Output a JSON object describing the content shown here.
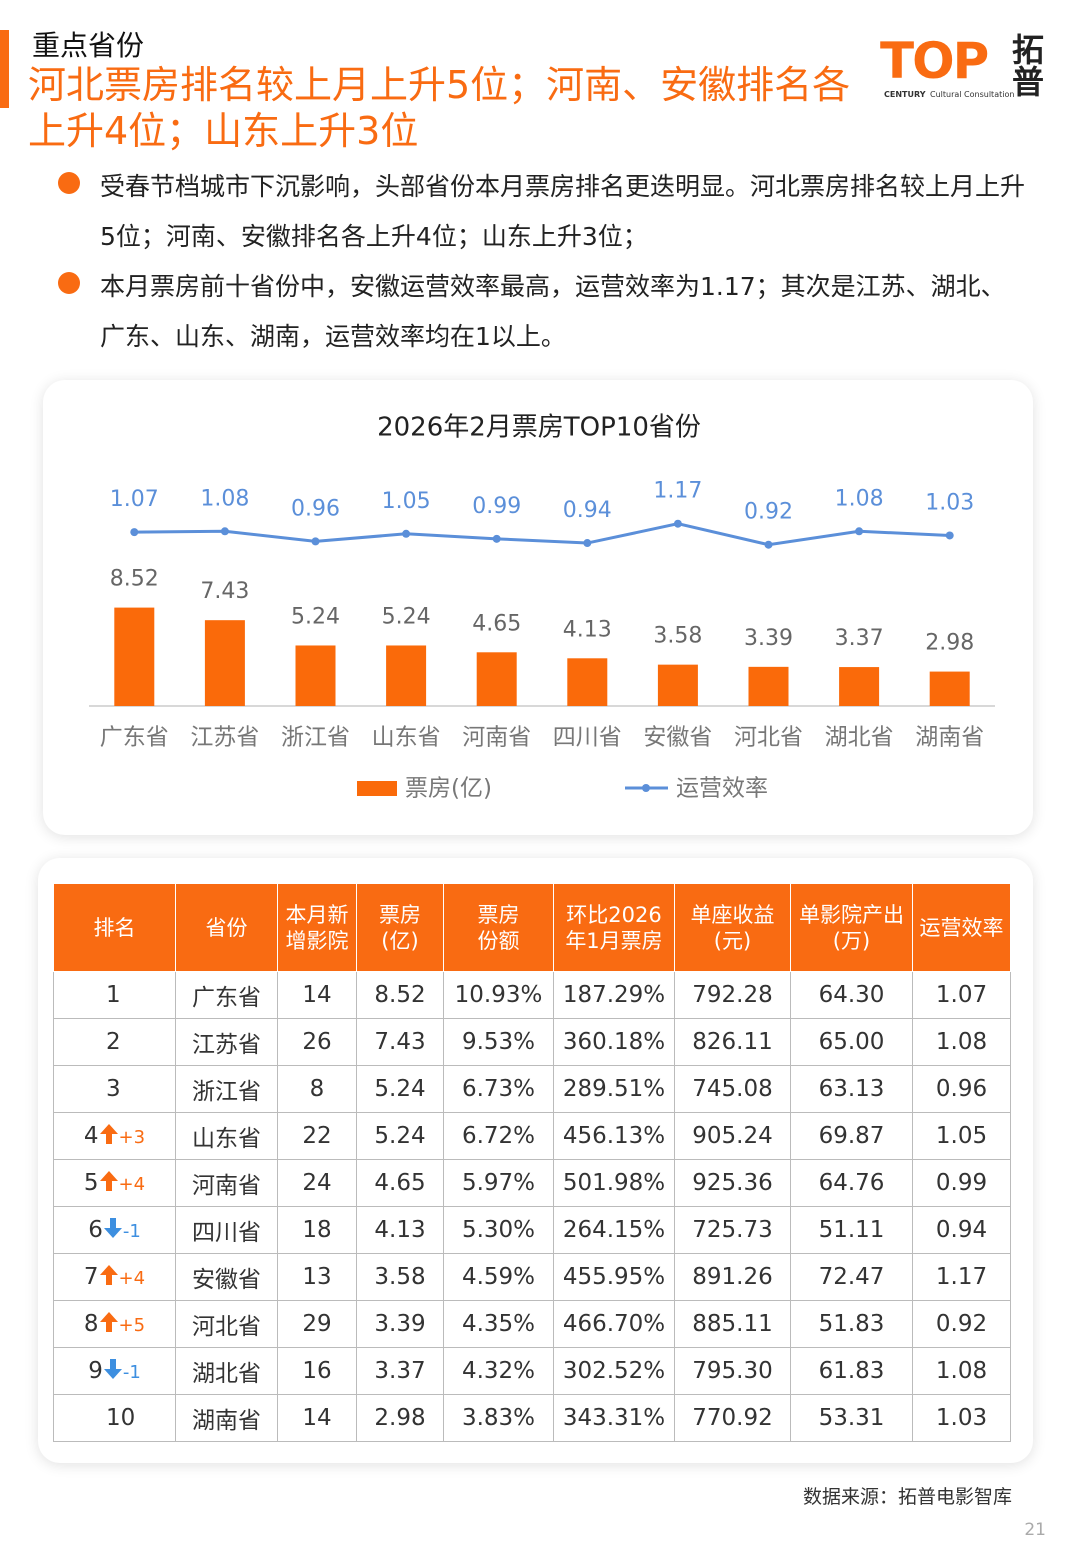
{
  "section": "重点省份",
  "title": "河北票房排名较上月上升5位；河南、安徽排名各上升4位；山东上升3位",
  "logo": {
    "main": "TOP",
    "cn": "拓普",
    "sub1": "CENTURY",
    "sub2": "Cultural Consultation"
  },
  "bullets": [
    "受春节档城市下沉影响，头部省份本月票房排名更迭明显。河北票房排名较上月上升5位；河南、安徽排名各上升4位；山东上升3位；",
    "本月票房前十省份中，安徽运营效率最高，运营效率为1.17；其次是江苏、湖北、广东、山东、湖南，运营效率均在1以上。"
  ],
  "chart_data": {
    "type": "combo",
    "title": "2026年2月票房TOP10省份",
    "categories": [
      "广东省",
      "江苏省",
      "浙江省",
      "山东省",
      "河南省",
      "四川省",
      "安徽省",
      "河北省",
      "湖北省",
      "湖南省"
    ],
    "series": [
      {
        "name": "票房(亿)",
        "type": "bar",
        "color": "#fa6a0a",
        "values": [
          8.52,
          7.43,
          5.24,
          5.24,
          4.65,
          4.13,
          3.58,
          3.39,
          3.37,
          2.98
        ]
      },
      {
        "name": "运营效率",
        "type": "line",
        "color": "#5b8fd9",
        "axis": "y2",
        "values": [
          1.07,
          1.08,
          0.96,
          1.05,
          0.99,
          0.94,
          1.17,
          0.92,
          1.08,
          1.03
        ]
      }
    ],
    "ylim": [
      0,
      20
    ],
    "y2lim": [
      -1,
      1.75
    ]
  },
  "table": {
    "columns": [
      "排名",
      "省份",
      "本月新\n增影院",
      "票房\n(亿)",
      "票房\n份额",
      "环比2026\n年1月票房",
      "单座收益\n(元)",
      "单影院产出\n(万)",
      "运营效率"
    ],
    "rows": [
      {
        "rank": "1",
        "cells": [
          "广东省",
          "14",
          "8.52",
          "10.93%",
          "187.29%",
          "792.28",
          "64.30",
          "1.07"
        ]
      },
      {
        "rank": "2",
        "cells": [
          "江苏省",
          "26",
          "7.43",
          "9.53%",
          "360.18%",
          "826.11",
          "65.00",
          "1.08"
        ]
      },
      {
        "rank": "3",
        "cells": [
          "浙江省",
          "8",
          "5.24",
          "6.73%",
          "289.51%",
          "745.08",
          "63.13",
          "0.96"
        ]
      },
      {
        "rank": "4",
        "dir": "up",
        "change": "+3",
        "cells": [
          "山东省",
          "22",
          "5.24",
          "6.72%",
          "456.13%",
          "905.24",
          "69.87",
          "1.05"
        ]
      },
      {
        "rank": "5",
        "dir": "up",
        "change": "+4",
        "cells": [
          "河南省",
          "24",
          "4.65",
          "5.97%",
          "501.98%",
          "925.36",
          "64.76",
          "0.99"
        ]
      },
      {
        "rank": "6",
        "dir": "down",
        "change": "-1",
        "cells": [
          "四川省",
          "18",
          "4.13",
          "5.30%",
          "264.15%",
          "725.73",
          "51.11",
          "0.94"
        ]
      },
      {
        "rank": "7",
        "dir": "up",
        "change": "+4",
        "cells": [
          "安徽省",
          "13",
          "3.58",
          "4.59%",
          "455.95%",
          "891.26",
          "72.47",
          "1.17"
        ]
      },
      {
        "rank": "8",
        "dir": "up",
        "change": "+5",
        "cells": [
          "河北省",
          "29",
          "3.39",
          "4.35%",
          "466.70%",
          "885.11",
          "51.83",
          "0.92"
        ]
      },
      {
        "rank": "9",
        "dir": "down",
        "change": "-1",
        "cells": [
          "湖北省",
          "16",
          "3.37",
          "4.32%",
          "302.52%",
          "795.30",
          "61.83",
          "1.08"
        ]
      },
      {
        "rank": "10",
        "cells": [
          "湖南省",
          "14",
          "2.98",
          "3.83%",
          "343.31%",
          "770.92",
          "53.31",
          "1.03"
        ]
      }
    ]
  },
  "source": "数据来源：拓普电影智库",
  "page": "21"
}
